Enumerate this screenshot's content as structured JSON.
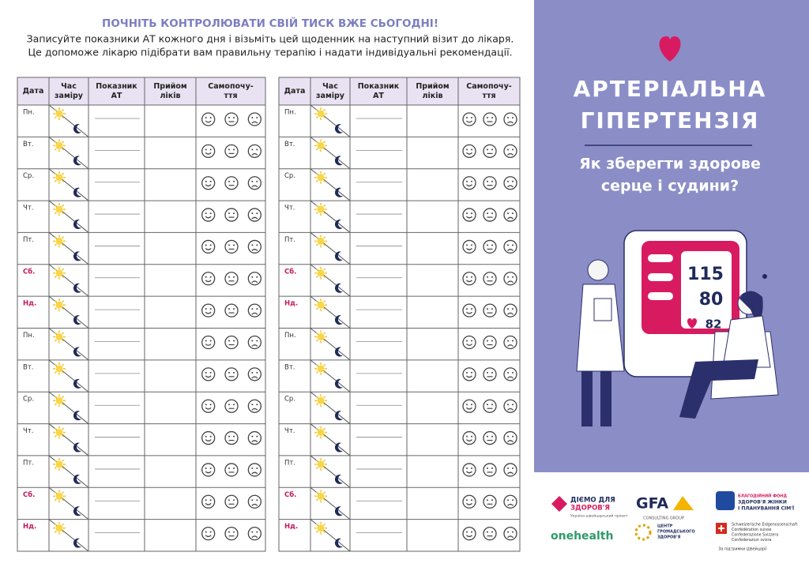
{
  "header": {
    "title": "ПОЧНІТЬ КОНТРОЛЮВАТИ СВІЙ ТИСК ВЖЕ СЬОГОДНІ!",
    "lines": [
      "Записуйте показники АТ кожного дня і візьміть цей щоденник на наступний візит до лікаря.",
      "Це допоможе лікарю підібрати вам правильну терапію і надати індивідуальні рекомендації."
    ]
  },
  "tables": [
    {
      "headers": [
        [
          "Дата"
        ],
        [
          "Час",
          "заміру"
        ],
        [
          "Показник",
          "АТ"
        ],
        [
          "Прийом",
          "ліків"
        ],
        [
          "Самопочу-",
          "ття"
        ]
      ],
      "days": [
        "Пн.",
        "Вт.",
        "Ср.",
        "Чт.",
        "Пт.",
        "Сб.",
        "Нд.",
        "Пн.",
        "Вт.",
        "Ср.",
        "Чт.",
        "Пт.",
        "Сб.",
        "Нд."
      ]
    },
    {
      "headers": [
        [
          "Дата"
        ],
        [
          "Час",
          "заміру"
        ],
        [
          "Показник",
          "АТ"
        ],
        [
          "Прийом",
          "ліків"
        ],
        [
          "Самопочу-",
          "ття"
        ]
      ],
      "days": [
        "Пн.",
        "Вт.",
        "Ср.",
        "Чт.",
        "Пт.",
        "Сб.",
        "Нд.",
        "Пн.",
        "Вт.",
        "Ср.",
        "Чт.",
        "Пт.",
        "Сб.",
        "Нд."
      ]
    }
  ],
  "panel": {
    "title": [
      "АРТЕРІАЛЬНА",
      "ГІПЕРТЕНЗІЯ"
    ],
    "subtitle": [
      "Як зберегти здорове",
      "серце і судини?"
    ],
    "monitor": {
      "systolic": "115",
      "diastolic": "80",
      "pulse": "82"
    }
  },
  "logos": {
    "diemo": [
      "ДІЄМО ДЛЯ",
      "ЗДОРОВ'Я",
      "Україно-швейцарський проект"
    ],
    "gfa": [
      "GFA",
      "CONSULTING GROUP"
    ],
    "fund": [
      "БЛАГОДІЙНИЙ ФОНД",
      "ЗДОРОВ'Я ЖІНКИ",
      "І ПЛАНУВАННЯ СІМ'Ї"
    ],
    "onehealth": "onehealth",
    "centre": [
      "ЦЕНТР",
      "ГРОМАДСЬКОГО",
      "ЗДОРОВ'Я"
    ],
    "swiss": [
      "Schweizerische Eidgenossenschaft",
      "Confédération suisse",
      "Confederazione Svizzera",
      "Confederaziun svizra",
      "За підтримки Швейцарії"
    ]
  }
}
